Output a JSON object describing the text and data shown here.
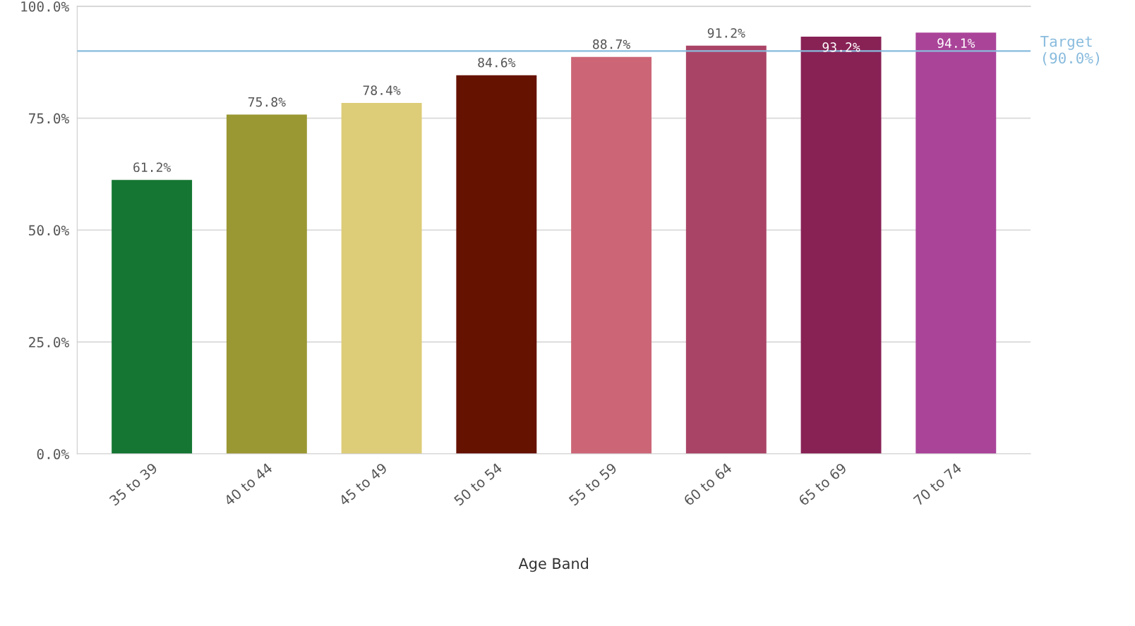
{
  "chart_data": {
    "type": "bar",
    "xlabel": "Age Band",
    "categories": [
      "35 to 39",
      "40 to 44",
      "45 to 49",
      "50 to 54",
      "55 to 59",
      "60 to 64",
      "65 to 69",
      "70 to 74"
    ],
    "values": [
      61.2,
      75.8,
      78.4,
      84.6,
      88.7,
      91.2,
      93.2,
      94.1
    ],
    "colors": [
      "#147632",
      "#9a9832",
      "#ddcc78",
      "#661200",
      "#cc6677",
      "#aa4466",
      "#882255",
      "#aa4499"
    ],
    "value_labels": [
      "61.2%",
      "75.8%",
      "78.4%",
      "84.6%",
      "88.7%",
      "91.2%",
      "93.2%",
      "94.1%"
    ],
    "ylim": [
      0,
      100
    ],
    "yticks": [
      {
        "value": 0,
        "label": "0.0%"
      },
      {
        "value": 25,
        "label": "25.0%"
      },
      {
        "value": 50,
        "label": "50.0%"
      },
      {
        "value": 75,
        "label": "75.0%"
      },
      {
        "value": 100,
        "label": "100.0%"
      }
    ],
    "ref_lines": [
      {
        "axis": "y",
        "value": 90,
        "label": "Target\n(90.0%)",
        "color": "#88bbdd"
      }
    ],
    "grid": "y"
  }
}
